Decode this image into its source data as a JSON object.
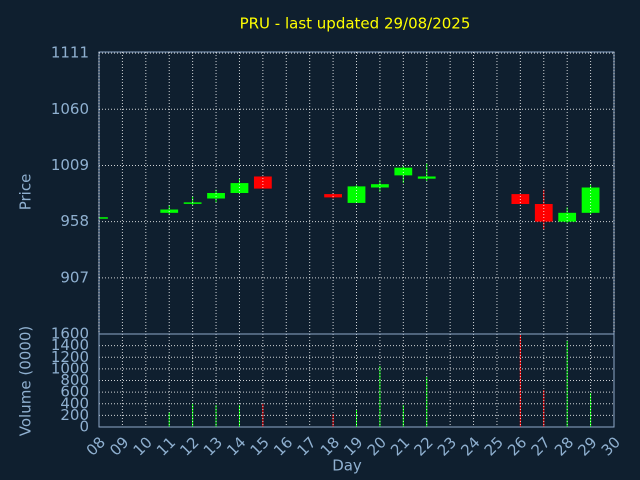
{
  "chart_data": [
    {
      "type": "candlestick",
      "title": "PRU - last updated 29/08/2025",
      "ylabel": "Price",
      "x": [
        8,
        11,
        12,
        13,
        14,
        15,
        18,
        19,
        20,
        21,
        22,
        26,
        27,
        28,
        29
      ],
      "open": [
        962,
        966,
        975,
        979,
        984,
        999,
        983,
        975,
        989,
        1000,
        997,
        983,
        974,
        958,
        966
      ],
      "high": [
        962,
        973,
        981,
        987,
        997,
        999,
        984,
        991,
        996,
        1009,
        1011,
        983,
        987,
        971,
        992
      ],
      "low": [
        962,
        964,
        973,
        975,
        983,
        988,
        979,
        975,
        985,
        993,
        995,
        974,
        951,
        957,
        964
      ],
      "close": [
        962,
        969,
        975.5,
        984,
        993,
        988,
        980,
        990,
        992,
        1007,
        999,
        974,
        958,
        966,
        989
      ],
      "up_color": "#00ff00",
      "down_color": "#ff0000",
      "xlim": [
        8,
        30
      ],
      "ylim": [
        856,
        1112
      ],
      "yticks": [
        907,
        958,
        1009,
        1060,
        1111
      ],
      "grid": true
    },
    {
      "type": "bar",
      "ylabel": "Volume (0000)",
      "xlabel": "Day",
      "x": [
        11,
        12,
        13,
        14,
        15,
        18,
        19,
        20,
        21,
        22,
        26,
        27,
        28,
        29
      ],
      "values": [
        258,
        396,
        379,
        379,
        396,
        224,
        292,
        1050,
        379,
        860,
        1583,
        637,
        1480,
        585
      ],
      "colors": [
        "#00ff00",
        "#00ff00",
        "#00ff00",
        "#00ff00",
        "#ff0000",
        "#ff0000",
        "#00ff00",
        "#00ff00",
        "#00ff00",
        "#00ff00",
        "#ff0000",
        "#ff0000",
        "#00ff00",
        "#00ff00"
      ],
      "xlim": [
        8,
        30
      ],
      "ylim": [
        0,
        1600
      ],
      "yticks": [
        0,
        200,
        400,
        600,
        800,
        1000,
        1200,
        1400,
        1600
      ],
      "xticks": [
        {
          "value": 8,
          "label": "08"
        },
        {
          "value": 9,
          "label": "09"
        },
        10,
        11,
        12,
        13,
        14,
        15,
        16,
        17,
        18,
        19,
        20,
        21,
        22,
        23,
        24,
        25,
        26,
        27,
        28,
        29,
        30
      ],
      "grid": true
    }
  ]
}
